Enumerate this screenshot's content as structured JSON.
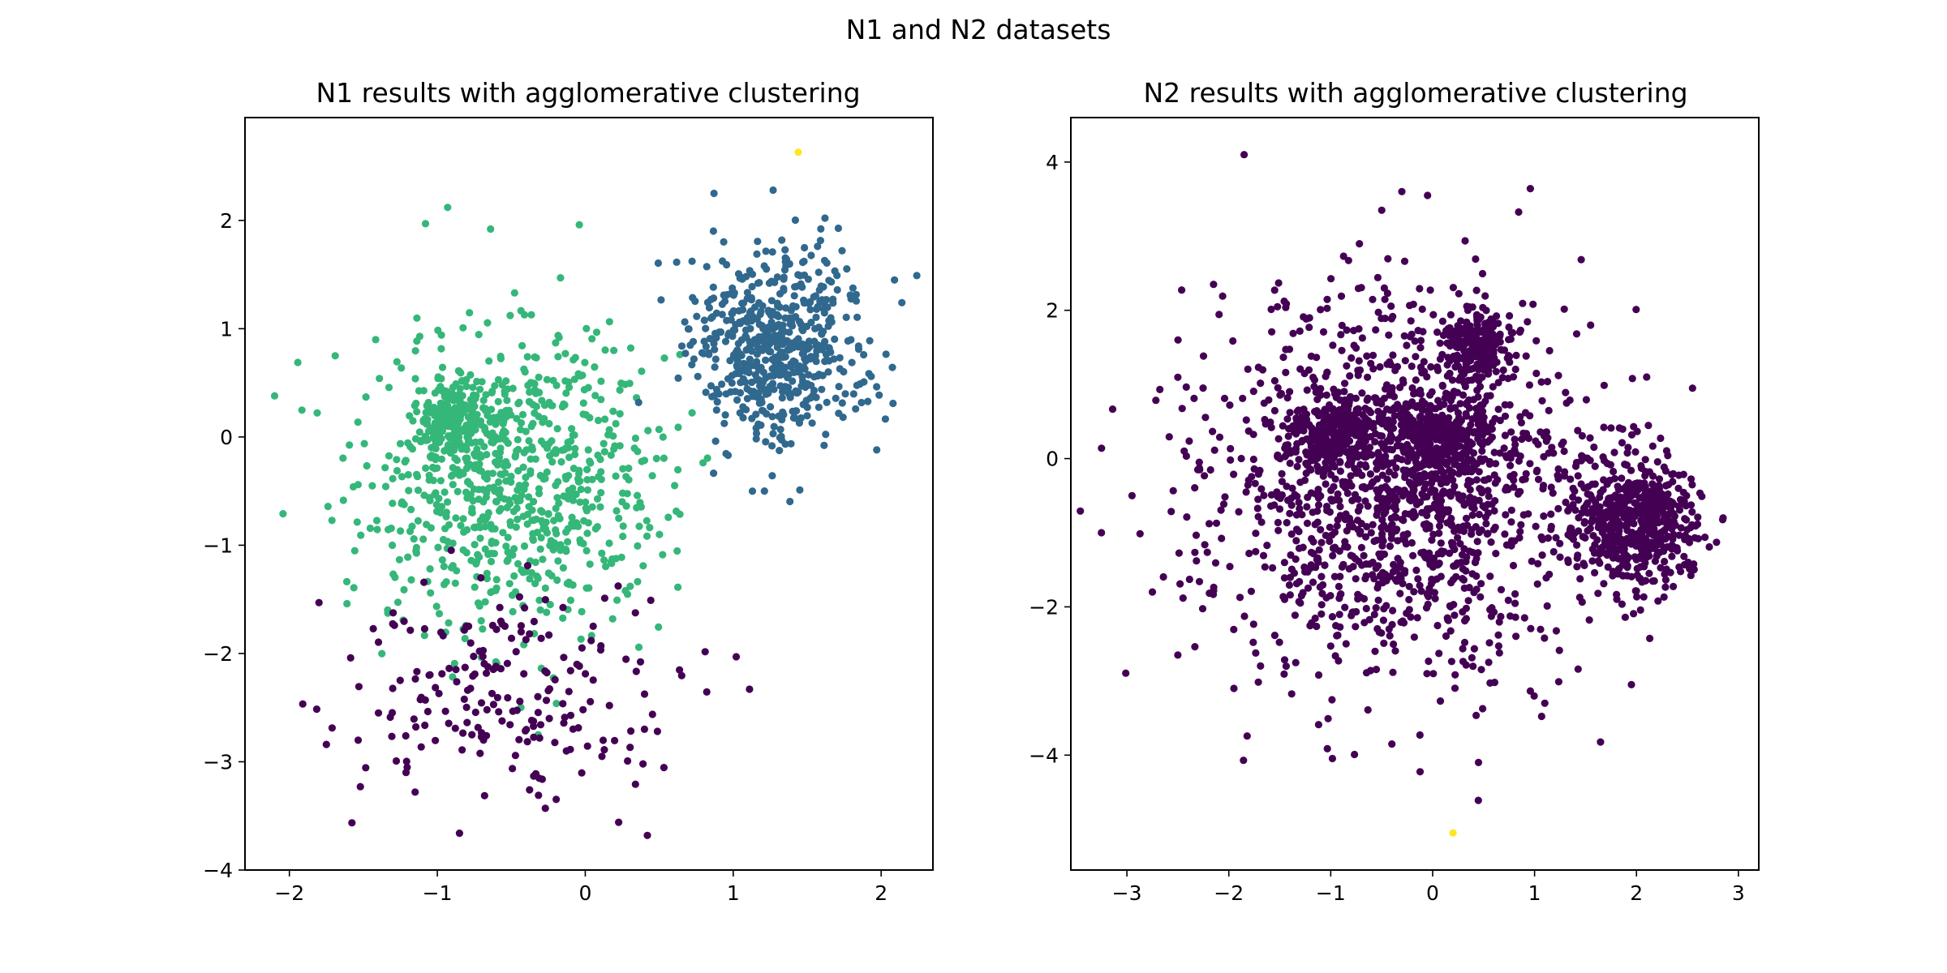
{
  "figure": {
    "suptitle": "N1 and N2 datasets"
  },
  "colors": {
    "purple": "#440154",
    "blue": "#31688e",
    "green": "#35b779",
    "yellow": "#fde725"
  },
  "chart_data": [
    {
      "type": "scatter",
      "title": "N1 results with agglomerative clustering",
      "xlabel": "",
      "ylabel": "",
      "xlim": [
        -2.3,
        2.35
      ],
      "ylim": [
        -4.0,
        2.95
      ],
      "xticks": [
        -2,
        -1,
        0,
        1,
        2
      ],
      "xtick_labels": [
        "−2",
        "−1",
        "0",
        "1",
        "2"
      ],
      "yticks": [
        -4,
        -3,
        -2,
        -1,
        0,
        1,
        2
      ],
      "ytick_labels": [
        "−4",
        "−3",
        "−2",
        "−1",
        "0",
        "1",
        "2"
      ],
      "grid": false,
      "clusters": [
        {
          "color": "#35b779",
          "blobs": [
            {
              "cx": -0.9,
              "cy": 0.15,
              "sx": 0.12,
              "sy": 0.18,
              "n": 220
            },
            {
              "cx": -0.45,
              "cy": -0.4,
              "sx": 0.5,
              "sy": 0.7,
              "n": 760
            }
          ]
        },
        {
          "color": "#31688e",
          "blobs": [
            {
              "cx": 1.3,
              "cy": 0.85,
              "sx": 0.3,
              "sy": 0.45,
              "n": 580
            }
          ]
        },
        {
          "color": "#440154",
          "blobs": [
            {
              "cx": -0.55,
              "cy": -2.35,
              "sx": 0.55,
              "sy": 0.45,
              "n": 200
            }
          ]
        }
      ],
      "points": [
        {
          "x": 1.44,
          "y": 2.63,
          "color": "#fde725"
        },
        {
          "x": -2.1,
          "y": 0.38,
          "color": "#35b779"
        },
        {
          "x": -0.93,
          "y": 2.12,
          "color": "#35b779"
        },
        {
          "x": -1.08,
          "y": 1.97,
          "color": "#35b779"
        },
        {
          "x": -0.04,
          "y": 1.96,
          "color": "#35b779"
        },
        {
          "x": -0.64,
          "y": 1.92,
          "color": "#35b779"
        },
        {
          "x": 1.27,
          "y": 2.28,
          "color": "#31688e"
        },
        {
          "x": 0.87,
          "y": 2.25,
          "color": "#31688e"
        },
        {
          "x": 2.14,
          "y": 1.24,
          "color": "#31688e"
        },
        {
          "x": 2.09,
          "y": 1.45,
          "color": "#31688e"
        },
        {
          "x": 2.08,
          "y": 0.31,
          "color": "#31688e"
        },
        {
          "x": 1.97,
          "y": -0.12,
          "color": "#31688e"
        },
        {
          "x": 1.45,
          "y": -0.49,
          "color": "#31688e"
        },
        {
          "x": 1.13,
          "y": -0.5,
          "color": "#31688e"
        },
        {
          "x": -0.85,
          "y": -3.66,
          "color": "#440154"
        },
        {
          "x": 0.42,
          "y": -3.68,
          "color": "#440154"
        },
        {
          "x": -0.27,
          "y": -3.43,
          "color": "#440154"
        },
        {
          "x": -1.15,
          "y": -3.28,
          "color": "#440154"
        },
        {
          "x": -1.52,
          "y": -3.23,
          "color": "#440154"
        },
        {
          "x": 1.02,
          "y": -2.03,
          "color": "#440154"
        },
        {
          "x": 1.11,
          "y": -2.33,
          "color": "#440154"
        },
        {
          "x": -1.75,
          "y": -2.84,
          "color": "#440154"
        },
        {
          "x": -1.8,
          "y": -1.53,
          "color": "#440154"
        },
        {
          "x": 0.39,
          "y": -3.02,
          "color": "#440154"
        },
        {
          "x": 0.4,
          "y": -2.7,
          "color": "#440154"
        }
      ]
    },
    {
      "type": "scatter",
      "title": "N2 results with agglomerative clustering",
      "xlabel": "",
      "ylabel": "",
      "xlim": [
        -3.55,
        3.2
      ],
      "ylim": [
        -5.55,
        4.6
      ],
      "xticks": [
        -3,
        -2,
        -1,
        0,
        1,
        2,
        3
      ],
      "xtick_labels": [
        "−3",
        "−2",
        "−1",
        "0",
        "1",
        "2",
        "3"
      ],
      "yticks": [
        -4,
        -2,
        0,
        2,
        4
      ],
      "ytick_labels": [
        "−4",
        "−2",
        "0",
        "2",
        "4"
      ],
      "grid": false,
      "clusters": [
        {
          "color": "#440154",
          "blobs": [
            {
              "cx": -0.3,
              "cy": -0.4,
              "sx": 0.95,
              "sy": 1.25,
              "n": 1500
            },
            {
              "cx": 0.45,
              "cy": 1.55,
              "sx": 0.17,
              "sy": 0.22,
              "n": 200
            },
            {
              "cx": -0.95,
              "cy": 0.3,
              "sx": 0.2,
              "sy": 0.24,
              "n": 220
            },
            {
              "cx": 0.05,
              "cy": 0.3,
              "sx": 0.25,
              "sy": 0.32,
              "n": 300
            },
            {
              "cx": 2.0,
              "cy": -0.9,
              "sx": 0.3,
              "sy": 0.42,
              "n": 520
            }
          ]
        }
      ],
      "points": [
        {
          "x": 0.2,
          "y": -5.05,
          "color": "#fde725"
        },
        {
          "x": -1.85,
          "y": 4.1,
          "color": "#440154"
        },
        {
          "x": -0.5,
          "y": 3.35,
          "color": "#440154"
        },
        {
          "x": -0.05,
          "y": 3.55,
          "color": "#440154"
        },
        {
          "x": -3.25,
          "y": -1.0,
          "color": "#440154"
        },
        {
          "x": -2.95,
          "y": -0.5,
          "color": "#440154"
        },
        {
          "x": -2.5,
          "y": -2.65,
          "color": "#440154"
        },
        {
          "x": -2.75,
          "y": -1.8,
          "color": "#440154"
        },
        {
          "x": 2.85,
          "y": -0.8,
          "color": "#440154"
        },
        {
          "x": 2.55,
          "y": 0.95,
          "color": "#440154"
        },
        {
          "x": 2.1,
          "y": 1.1,
          "color": "#440154"
        },
        {
          "x": 1.95,
          "y": -3.05,
          "color": "#440154"
        },
        {
          "x": 0.45,
          "y": -4.1,
          "color": "#440154"
        },
        {
          "x": -0.4,
          "y": -3.85,
          "color": "#440154"
        },
        {
          "x": 1.1,
          "y": -3.3,
          "color": "#440154"
        },
        {
          "x": -1.95,
          "y": -3.1,
          "color": "#440154"
        },
        {
          "x": 1.55,
          "y": 1.8,
          "color": "#440154"
        },
        {
          "x": -2.15,
          "y": 2.35,
          "color": "#440154"
        }
      ]
    }
  ]
}
